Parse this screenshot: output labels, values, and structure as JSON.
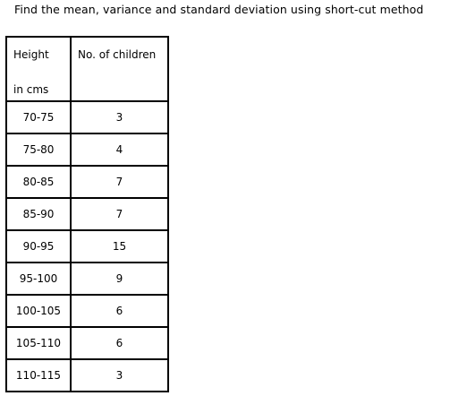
{
  "question": {
    "text": "Find the mean, variance and standard deviation using short-cut method"
  },
  "table": {
    "headers": {
      "height_line1": "Height",
      "height_line2": "in cms",
      "count": "No. of children"
    },
    "rows": [
      {
        "height": "70-75",
        "children": "3"
      },
      {
        "height": "75-80",
        "children": "4"
      },
      {
        "height": "80-85",
        "children": "7"
      },
      {
        "height": "85-90",
        "children": "7"
      },
      {
        "height": "90-95",
        "children": "15"
      },
      {
        "height": "95-100",
        "children": "9"
      },
      {
        "height": "100-105",
        "children": "6"
      },
      {
        "height": "105-110",
        "children": "6"
      },
      {
        "height": "110-115",
        "children": "3"
      }
    ]
  }
}
